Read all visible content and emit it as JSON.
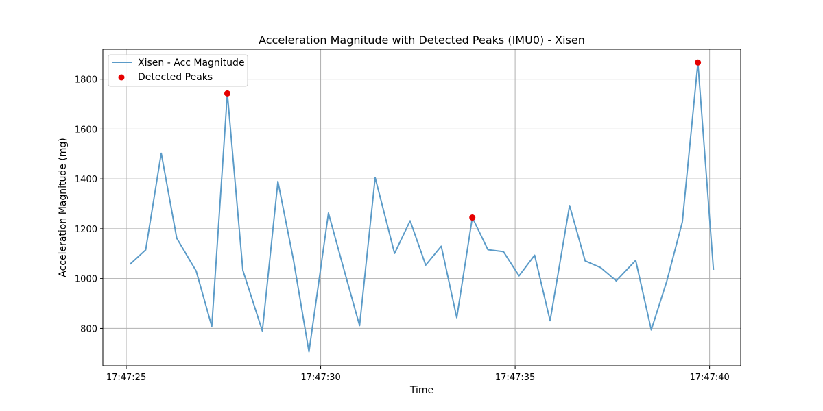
{
  "chart_data": {
    "type": "line",
    "title": "Acceleration Magnitude with Detected Peaks (IMU0) - Xisen",
    "xlabel": "Time",
    "ylabel": "Acceleration Magnitude (mg)",
    "x_ticks": [
      "17:47:25",
      "17:47:30",
      "17:47:35",
      "17:47:40"
    ],
    "x_tick_seconds": [
      25,
      30,
      35,
      40
    ],
    "xlim": [
      "17:47:24.4",
      "17:47:40.8"
    ],
    "y_ticks": [
      "800",
      "1000",
      "1200",
      "1400",
      "1600",
      "1800"
    ],
    "ylim": [
      650,
      1920
    ],
    "grid": true,
    "legend_position": "top-left",
    "series": [
      {
        "name": "Xisen - Acc Magnitude",
        "kind": "line",
        "color": "#5b9bc8",
        "x": [
          "17:47:25.1",
          "17:47:25.5",
          "17:47:25.9",
          "17:47:26.3",
          "17:47:26.8",
          "17:47:27.2",
          "17:47:27.6",
          "17:47:28.0",
          "17:47:28.5",
          "17:47:28.9",
          "17:47:29.3",
          "17:47:29.7",
          "17:47:30.2",
          "17:47:30.6",
          "17:47:31.0",
          "17:47:31.4",
          "17:47:31.9",
          "17:47:32.3",
          "17:47:32.7",
          "17:47:33.1",
          "17:47:33.5",
          "17:47:33.9",
          "17:47:34.3",
          "17:47:34.7",
          "17:47:35.1",
          "17:47:35.5",
          "17:47:35.9",
          "17:47:36.4",
          "17:47:36.8",
          "17:47:37.2",
          "17:47:37.6",
          "17:47:38.1",
          "17:47:38.5",
          "17:47:38.9",
          "17:47:39.3",
          "17:47:39.7",
          "17:47:40.1"
        ],
        "values": [
          1058,
          1115,
          1503,
          1162,
          1030,
          808,
          1743,
          1033,
          790,
          1390,
          1075,
          706,
          1263,
          1035,
          811,
          1405,
          1101,
          1232,
          1054,
          1130,
          843,
          1245,
          1116,
          1108,
          1011,
          1094,
          831,
          1293,
          1071,
          1044,
          991,
          1073,
          794,
          990,
          1227,
          1867,
          1035
        ]
      },
      {
        "name": "Detected Peaks",
        "kind": "scatter",
        "color": "#e60000",
        "x": [
          "17:47:27.6",
          "17:47:33.9",
          "17:47:39.7"
        ],
        "values": [
          1743,
          1245,
          1867
        ]
      }
    ]
  }
}
